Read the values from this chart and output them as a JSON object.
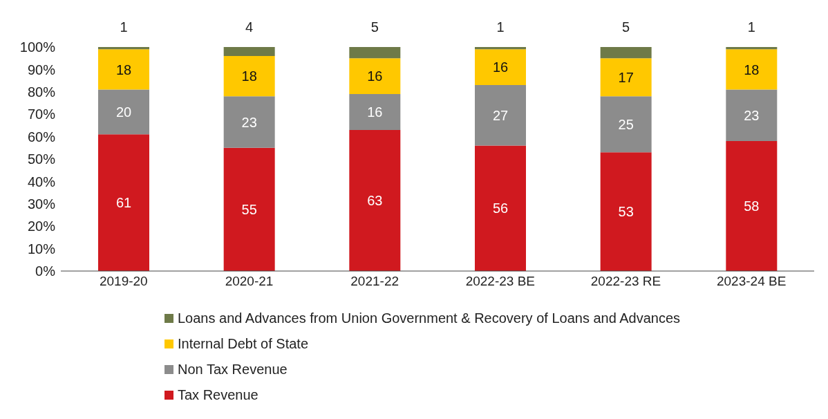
{
  "chart_data": {
    "type": "bar",
    "stacked": true,
    "categories": [
      "2019-20",
      "2020-21",
      "2021-22",
      "2022-23 BE",
      "2022-23 RE",
      "2023-24 BE"
    ],
    "series": [
      {
        "name": "Tax Revenue",
        "color": "#d0191f",
        "values": [
          61,
          55,
          63,
          56,
          53,
          58
        ]
      },
      {
        "name": "Non Tax Revenue",
        "color": "#8c8c8c",
        "values": [
          20,
          23,
          16,
          27,
          25,
          23
        ]
      },
      {
        "name": "Internal Debt of State",
        "color": "#ffc800",
        "values": [
          18,
          18,
          16,
          16,
          17,
          18
        ]
      },
      {
        "name": "Loans and Advances from Union Government & Recovery of Loans and Advances",
        "color": "#6e7a48",
        "values": [
          1,
          4,
          5,
          1,
          5,
          1
        ]
      }
    ],
    "ylim": [
      0,
      100
    ],
    "yticks": [
      {
        "value": 0,
        "label": "0%"
      },
      {
        "value": 10,
        "label": "10%"
      },
      {
        "value": 20,
        "label": "20%"
      },
      {
        "value": 30,
        "label": "30%"
      },
      {
        "value": 40,
        "label": "40%"
      },
      {
        "value": 50,
        "label": "50%"
      },
      {
        "value": 60,
        "label": "60%"
      },
      {
        "value": 70,
        "label": "70%"
      },
      {
        "value": 80,
        "label": "80%"
      },
      {
        "value": 90,
        "label": "90%"
      },
      {
        "value": 100,
        "label": "100%"
      }
    ],
    "data_labels": true,
    "grid": false,
    "legend": "bottom"
  }
}
